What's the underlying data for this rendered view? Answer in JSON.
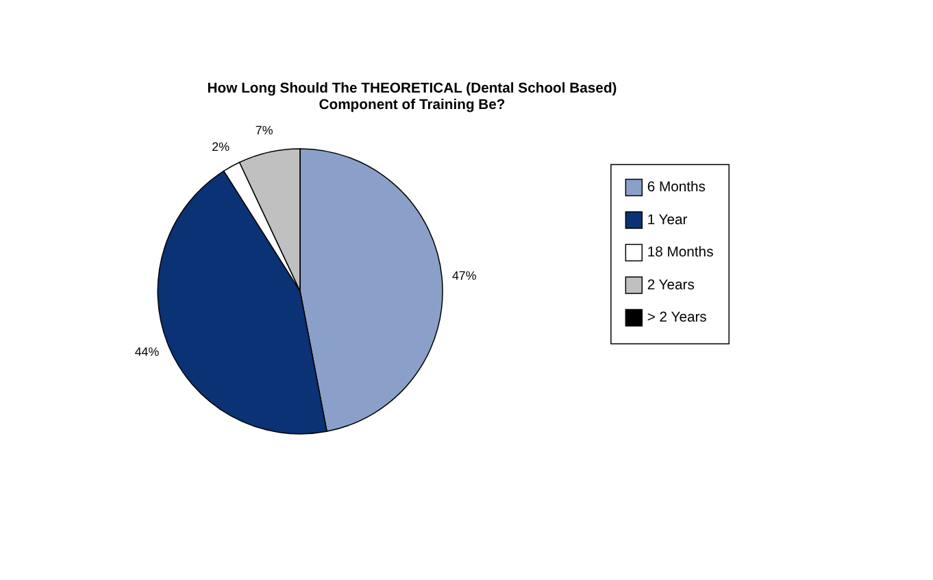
{
  "chart_data": {
    "type": "pie",
    "title": "How Long Should The THEORETICAL (Dental School Based) Component of Training Be?",
    "categories": [
      "6 Months",
      "1 Year",
      "18 Months",
      "2 Years",
      "> 2 Years"
    ],
    "values": [
      47,
      44,
      2,
      7,
      0
    ],
    "colors": [
      "#8aa0c8",
      "#0a3275",
      "#ffffff",
      "#c0c0c0",
      "#000000"
    ],
    "value_labels": [
      "47%",
      "44%",
      "2%",
      "7%",
      null
    ],
    "legend": "right"
  }
}
